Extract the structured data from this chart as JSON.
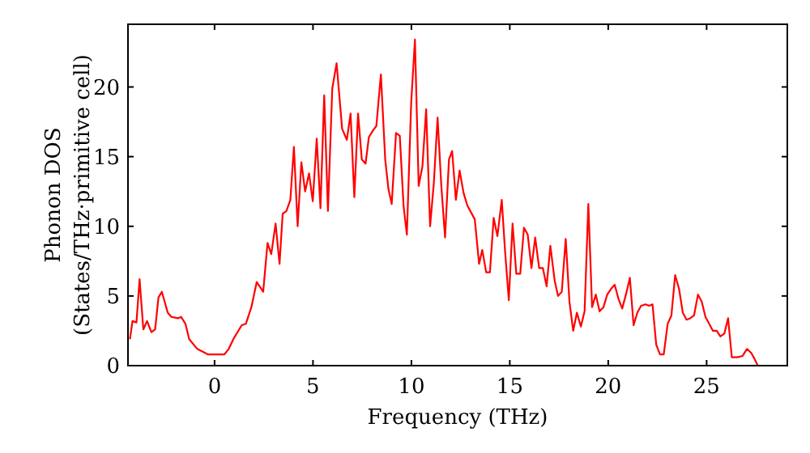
{
  "chart_data": {
    "type": "line",
    "xlabel": "Frequency (THz)",
    "ylabel": "Phonon DOS\n(States/THz·primitive cell)",
    "xlim": [
      -4.4,
      29.1
    ],
    "ylim": [
      0,
      24.5
    ],
    "xticks": [
      0,
      5,
      10,
      15,
      20,
      25
    ],
    "yticks": [
      0,
      5,
      10,
      15,
      20
    ],
    "grid": false,
    "marker": "none",
    "line_style": "solid",
    "series": [
      {
        "color": "#ff0000",
        "x": [
          -4.3,
          -4.17,
          -3.97,
          -3.81,
          -3.62,
          -3.43,
          -3.21,
          -3.02,
          -2.85,
          -2.68,
          -2.38,
          -2.19,
          -1.86,
          -1.7,
          -1.48,
          -1.29,
          -0.88,
          -0.33,
          0.49,
          0.72,
          0.99,
          1.38,
          1.59,
          1.87,
          2.14,
          2.47,
          2.69,
          2.88,
          3.1,
          3.3,
          3.46,
          3.65,
          3.85,
          4.03,
          4.22,
          4.41,
          4.6,
          4.8,
          4.99,
          5.19,
          5.38,
          5.57,
          5.76,
          5.98,
          6.2,
          6.48,
          6.72,
          6.91,
          7.1,
          7.29,
          7.48,
          7.67,
          7.84,
          8.06,
          8.22,
          8.45,
          8.67,
          8.83,
          9.0,
          9.22,
          9.41,
          9.6,
          9.77,
          9.99,
          10.18,
          10.37,
          10.56,
          10.75,
          10.95,
          11.14,
          11.33,
          11.52,
          11.71,
          11.91,
          12.07,
          12.26,
          12.45,
          12.65,
          12.84,
          13.22,
          13.44,
          13.6,
          13.8,
          13.99,
          14.18,
          14.37,
          14.59,
          14.76,
          14.95,
          15.14,
          15.33,
          15.53,
          15.72,
          15.91,
          16.1,
          16.29,
          16.49,
          16.68,
          16.87,
          17.06,
          17.28,
          17.45,
          17.64,
          17.84,
          18.03,
          18.22,
          18.41,
          18.61,
          18.8,
          18.99,
          19.18,
          19.37,
          19.56,
          19.76,
          19.95,
          20.14,
          20.33,
          20.52,
          20.71,
          20.9,
          21.1,
          21.29,
          21.48,
          21.67,
          21.89,
          22.08,
          22.25,
          22.44,
          22.63,
          22.82,
          23.02,
          23.21,
          23.4,
          23.6,
          23.79,
          23.98,
          24.17,
          24.36,
          24.56,
          24.75,
          24.94,
          25.13,
          25.32,
          25.51,
          25.7,
          25.9,
          26.09,
          26.28,
          26.56,
          26.83,
          27.05,
          27.27,
          27.43,
          27.6
        ],
        "values": [
          1.9,
          3.2,
          3.1,
          6.2,
          2.6,
          3.2,
          2.4,
          2.6,
          4.9,
          5.3,
          3.8,
          3.5,
          3.4,
          3.5,
          3.0,
          1.9,
          1.2,
          0.8,
          0.8,
          1.2,
          2.0,
          2.9,
          3.0,
          4.2,
          6.0,
          5.3,
          8.8,
          8.0,
          10.2,
          7.3,
          10.9,
          11.1,
          11.9,
          15.7,
          10.0,
          14.6,
          12.5,
          13.8,
          11.8,
          16.3,
          11.3,
          19.4,
          11.1,
          19.9,
          21.7,
          17.0,
          16.2,
          18.1,
          12.1,
          18.1,
          14.8,
          14.5,
          16.4,
          16.9,
          17.2,
          20.9,
          14.8,
          12.7,
          11.6,
          16.7,
          16.5,
          11.5,
          9.4,
          18.9,
          23.4,
          12.9,
          14.3,
          18.4,
          10.0,
          13.1,
          17.8,
          12.9,
          9.2,
          14.8,
          15.4,
          11.9,
          14.0,
          12.4,
          11.5,
          10.5,
          7.3,
          8.3,
          6.7,
          6.7,
          10.6,
          9.3,
          11.9,
          8.2,
          4.7,
          10.2,
          6.6,
          6.6,
          9.9,
          9.4,
          7.0,
          9.2,
          7.0,
          7.0,
          5.7,
          8.6,
          6.1,
          5.0,
          5.3,
          9.1,
          4.6,
          2.5,
          3.8,
          2.8,
          3.9,
          11.6,
          4.2,
          5.1,
          3.9,
          4.2,
          5.1,
          5.5,
          5.8,
          4.8,
          4.1,
          5.1,
          6.3,
          2.9,
          3.8,
          4.3,
          4.4,
          4.3,
          4.4,
          1.5,
          0.8,
          0.8,
          3.0,
          3.6,
          6.5,
          5.5,
          3.8,
          3.3,
          3.4,
          3.6,
          5.1,
          4.6,
          3.5,
          3.0,
          2.5,
          2.5,
          2.1,
          2.3,
          3.4,
          0.6,
          0.6,
          0.7,
          1.2,
          0.9,
          0.5,
          0
        ]
      }
    ]
  }
}
